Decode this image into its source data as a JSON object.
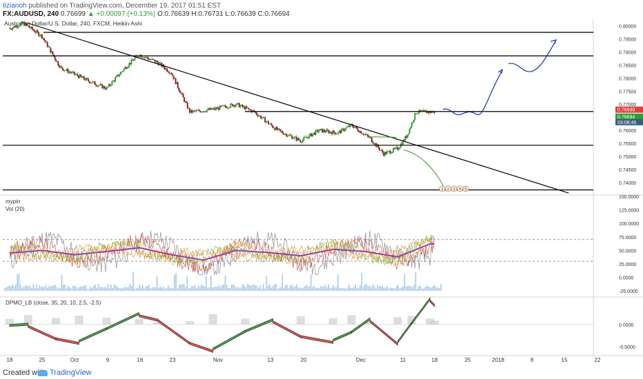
{
  "header": {
    "author": "tizianoh",
    "published": " published on TradingView.com, December 19, 2017 01:51 EST",
    "symbol": "FX:AUDUSD, 240",
    "price": "0.76699",
    "change_label": "▲ +0.00097 (+0.13%)",
    "ohlc": "O:0.76639 H:0.76731 L:0.76639 C:0.76694"
  },
  "footer": {
    "created_with": "Created with",
    "brand": "TradingView"
  },
  "colors": {
    "bull": "#2e9d3a",
    "bear": "#8b2323",
    "volume": "#a7c8e8",
    "macd_pos": "#4e9a4e",
    "macd_neg": "#d9534f",
    "forecast": "#1a2aa8",
    "curve": "#3a8a2a",
    "ma_purple": "#a03aa0",
    "price_tag": "#e0403a"
  },
  "chart_data": [
    {
      "type": "candlestick",
      "title": "Australian Dollar/U.S. Dollar, 240, FXCM, Heikin Ashi",
      "y_ticks": [
        "0.80000",
        "0.79500",
        "0.79000",
        "0.78500",
        "0.78000",
        "0.77500",
        "0.77000",
        "0.76500",
        "0.76000",
        "0.75500",
        "0.75000",
        "0.74500",
        "0.74000"
      ],
      "x_ticks": [
        "18",
        "25",
        "Oct",
        "9",
        "16",
        "23",
        "Nov",
        "13",
        "20",
        "Dec",
        "11",
        "18",
        "25",
        "2018",
        "8",
        "15",
        "22"
      ],
      "price_labels": [
        "0.76699",
        "0.76694",
        "03:08:45"
      ],
      "levels": [
        0.7975,
        0.7885,
        0.7672,
        0.7543,
        0.7372
      ],
      "trendline": {
        "from": [
          "2017-09-22",
          0.801
        ],
        "to": [
          "2018-01-17",
          0.736
        ]
      },
      "approx_close_path": [
        [
          "2017-09-18",
          0.799
        ],
        [
          "2017-09-21",
          0.801
        ],
        [
          "2017-09-25",
          0.796
        ],
        [
          "2017-09-29",
          0.784
        ],
        [
          "2017-10-05",
          0.779
        ],
        [
          "2017-10-09",
          0.776
        ],
        [
          "2017-10-13",
          0.784
        ],
        [
          "2017-10-16",
          0.789
        ],
        [
          "2017-10-20",
          0.786
        ],
        [
          "2017-10-23",
          0.782
        ],
        [
          "2017-10-27",
          0.767
        ],
        [
          "2017-11-01",
          0.768
        ],
        [
          "2017-11-06",
          0.77
        ],
        [
          "2017-11-10",
          0.767
        ],
        [
          "2017-11-15",
          0.76
        ],
        [
          "2017-11-20",
          0.756
        ],
        [
          "2017-11-24",
          0.76
        ],
        [
          "2017-11-28",
          0.759
        ],
        [
          "2017-12-01",
          0.762
        ],
        [
          "2017-12-05",
          0.757
        ],
        [
          "2017-12-08",
          0.751
        ],
        [
          "2017-12-11",
          0.753
        ],
        [
          "2017-12-13",
          0.758
        ],
        [
          "2017-12-15",
          0.767
        ],
        [
          "2017-12-19",
          0.767
        ]
      ],
      "annotation_labels": [
        "1",
        "2",
        "3",
        "4",
        "5"
      ]
    },
    {
      "type": "line",
      "indicator": "mypin",
      "study_label": "Vol (20)",
      "y_ticks": [
        "150.0000",
        "125.0000",
        "100.0000",
        "75.0000",
        "50.0000",
        "25.0000",
        "0.0000",
        "-25.0000"
      ],
      "ylim": [
        -35,
        150
      ],
      "dashed_levels": [
        70,
        30
      ],
      "approx_ma_path": [
        [
          "2017-09-18",
          45
        ],
        [
          "2017-09-25",
          50
        ],
        [
          "2017-10-02",
          42
        ],
        [
          "2017-10-09",
          48
        ],
        [
          "2017-10-16",
          55
        ],
        [
          "2017-10-23",
          42
        ],
        [
          "2017-10-30",
          32
        ],
        [
          "2017-11-06",
          50
        ],
        [
          "2017-11-13",
          46
        ],
        [
          "2017-11-20",
          40
        ],
        [
          "2017-11-27",
          52
        ],
        [
          "2017-12-04",
          48
        ],
        [
          "2017-12-11",
          38
        ],
        [
          "2017-12-18",
          62
        ]
      ]
    },
    {
      "type": "area",
      "indicator": "DPMO_LB (close, 35, 20, 10, 2.5, -2.5)",
      "y_ticks": [
        "0.0000",
        "-0.5000"
      ],
      "ylim": [
        -0.7,
        0.6
      ],
      "approx_path": [
        [
          "2017-09-18",
          -0.05
        ],
        [
          "2017-09-22",
          -0.02
        ],
        [
          "2017-09-28",
          -0.3
        ],
        [
          "2017-10-03",
          -0.4
        ],
        [
          "2017-10-09",
          -0.12
        ],
        [
          "2017-10-16",
          0.22
        ],
        [
          "2017-10-20",
          0.12
        ],
        [
          "2017-10-27",
          -0.4
        ],
        [
          "2017-11-01",
          -0.58
        ],
        [
          "2017-11-08",
          -0.18
        ],
        [
          "2017-11-14",
          0.08
        ],
        [
          "2017-11-20",
          -0.25
        ],
        [
          "2017-11-27",
          -0.38
        ],
        [
          "2017-12-01",
          -0.2
        ],
        [
          "2017-12-05",
          0.1
        ],
        [
          "2017-12-11",
          -0.42
        ],
        [
          "2017-12-14",
          0.0
        ],
        [
          "2017-12-18",
          0.55
        ],
        [
          "2017-12-19",
          0.45
        ]
      ]
    }
  ]
}
